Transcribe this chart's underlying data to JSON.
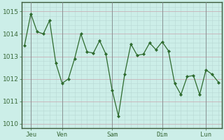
{
  "y_values": [
    1013.5,
    1014.9,
    1014.1,
    1014.0,
    1014.6,
    1012.7,
    1011.8,
    1012.0,
    1012.9,
    1014.0,
    1013.2,
    1013.15,
    1013.7,
    1013.1,
    1011.5,
    1010.35,
    1012.2,
    1013.55,
    1013.05,
    1013.1,
    1013.6,
    1013.3,
    1013.65,
    1013.25,
    1011.8,
    1011.3,
    1012.1,
    1012.15,
    1011.3,
    1012.4,
    1012.2,
    1011.85
  ],
  "x_ticks_pos": [
    1,
    6,
    14,
    22,
    29
  ],
  "x_tick_labels": [
    "Jeu",
    "Ven",
    "Sam",
    "Dim",
    "Lun"
  ],
  "ylim": [
    1009.8,
    1015.4
  ],
  "yticks": [
    1010,
    1011,
    1012,
    1013,
    1014,
    1015
  ],
  "line_color": "#2d6a2d",
  "marker_color": "#2d6a2d",
  "bg_color": "#cceee8",
  "grid_color_major": "#c8b0b8",
  "grid_color_minor": "#b8d8d4",
  "day_line_color": "#7a8a8a",
  "axis_color": "#2d6a2d",
  "spine_color": "#3a5a3a",
  "tick_label_color": "#3a6a3a",
  "n_points": 32
}
